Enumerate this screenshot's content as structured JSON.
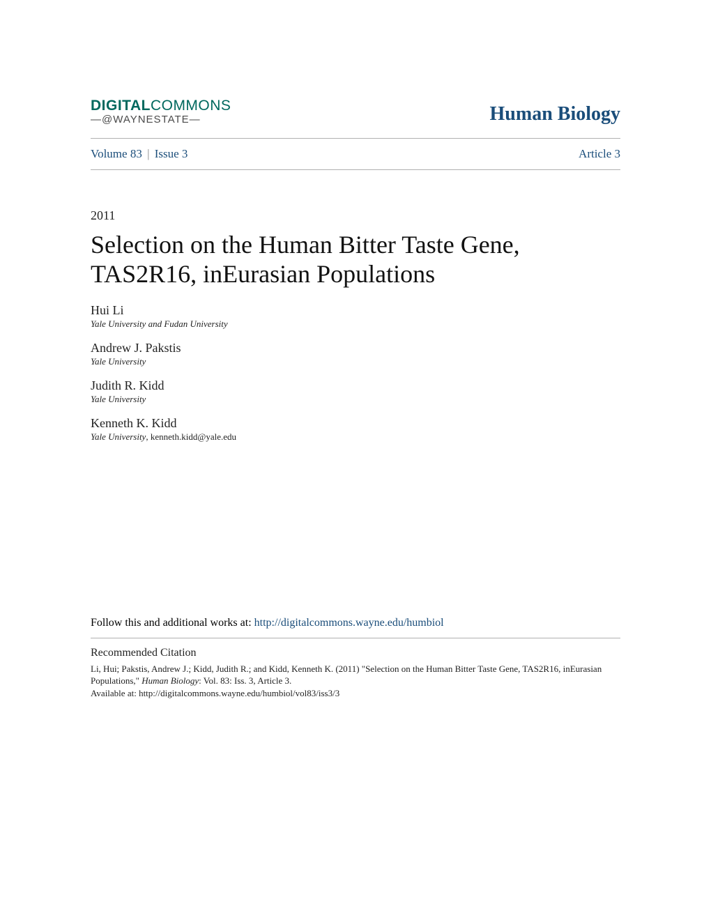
{
  "header": {
    "logo_line1a": "DIGITAL",
    "logo_line1b": "COMMONS",
    "logo_line2": "—@WAYNESTATE—",
    "journal_title": "Human Biology"
  },
  "nav": {
    "volume": "Volume 83",
    "separator": "|",
    "issue": "Issue 3",
    "article": "Article 3"
  },
  "year": "2011",
  "title": "Selection on the Human Bitter Taste Gene, TAS2R16, inEurasian Populations",
  "authors": [
    {
      "name": "Hui Li",
      "affiliation": "Yale University and Fudan University",
      "email": ""
    },
    {
      "name": "Andrew J. Pakstis",
      "affiliation": "Yale University",
      "email": ""
    },
    {
      "name": "Judith R. Kidd",
      "affiliation": "Yale University",
      "email": ""
    },
    {
      "name": "Kenneth K. Kidd",
      "affiliation": "Yale University",
      "email": ", kenneth.kidd@yale.edu"
    }
  ],
  "follow": {
    "text": "Follow this and additional works at: ",
    "link": "http://digitalcommons.wayne.edu/humbiol"
  },
  "citation": {
    "heading": "Recommended Citation",
    "line1": "Li, Hui; Pakstis, Andrew J.; Kidd, Judith R.; and Kidd, Kenneth K. (2011) \"Selection on the Human Bitter Taste Gene, TAS2R16, inEurasian Populations,\" ",
    "journal_italic": "Human Biology",
    "line2": ": Vol. 83: Iss. 3, Article 3.",
    "line3": "Available at: http://digitalcommons.wayne.edu/humbiol/vol83/iss3/3"
  },
  "colors": {
    "link": "#1a4d7a",
    "logo_teal": "#00685e",
    "text": "#222222",
    "divider": "#b0b0b0",
    "background": "#ffffff"
  },
  "typography": {
    "title_fontsize": 36,
    "journal_fontsize": 28,
    "body_fontsize": 16,
    "author_fontsize": 18,
    "affiliation_fontsize": 13,
    "citation_fontsize": 13
  }
}
